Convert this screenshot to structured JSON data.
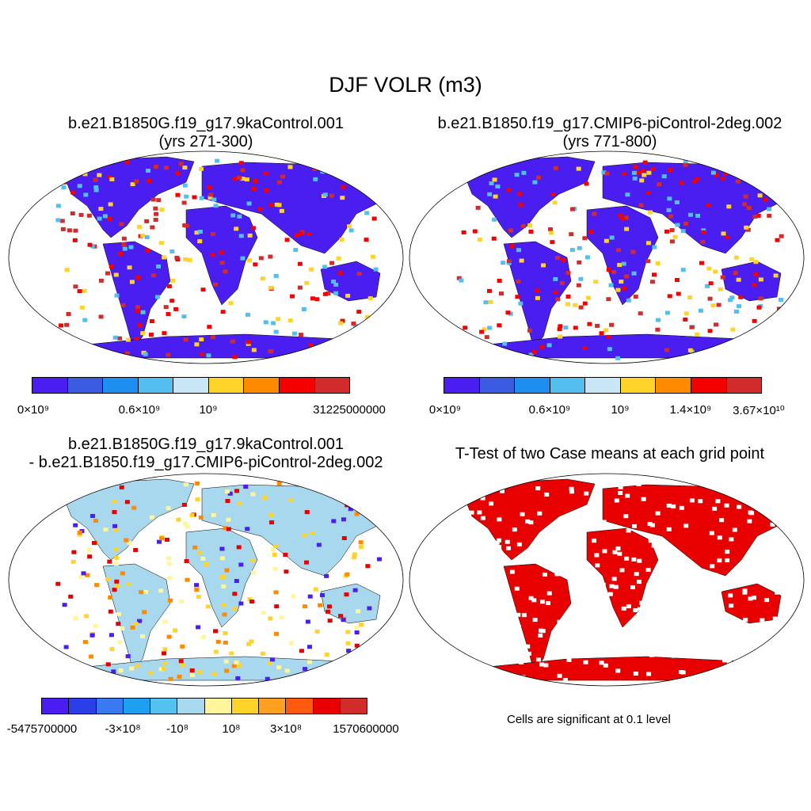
{
  "title": "DJF VOLR (m3)",
  "panels": [
    {
      "id": "case1",
      "title_line1": "b.e21.B1850G.f19_g17.9kaControl.001",
      "title_line2": "(yrs 271-300)",
      "colors": [
        "#4a1df0",
        "#3a5ae0",
        "#1e8ff0",
        "#52bfee",
        "#c8e6f6",
        "#ffd42a",
        "#ff8a00",
        "#f50000",
        "#d22b2b"
      ],
      "ticks": [
        "0×10⁹",
        "0.6×10⁹",
        "10⁹",
        "31225000000"
      ]
    },
    {
      "id": "case2",
      "title_line1": "b.e21.B1850.f19_g17.CMIP6-piControl-2deg.002",
      "title_line2": "(yrs 771-800)",
      "colors": [
        "#4a1df0",
        "#3a5ae0",
        "#1e8ff0",
        "#52bfee",
        "#c8e6f6",
        "#ffd42a",
        "#ff8a00",
        "#f50000",
        "#d22b2b"
      ],
      "ticks": [
        "0×10⁹",
        "0.6×10⁹",
        "10⁹",
        "1.4×10⁹",
        "3.67×10¹⁰"
      ]
    },
    {
      "id": "diff",
      "title_line1": "b.e21.B1850G.f19_g17.9kaControl.001",
      "title_line2": "- b.e21.B1850.f19_g17.CMIP6-piControl-2deg.002",
      "colors": [
        "#4a1df0",
        "#2b3fe8",
        "#3a7af0",
        "#1e9ff0",
        "#55c1ee",
        "#a8d8ee",
        "#fff59a",
        "#ffd42a",
        "#ffa020",
        "#ff5a10",
        "#e80000",
        "#d22b2b"
      ],
      "ticks": [
        "-5475700000",
        "-3×10⁸",
        "-10⁸",
        "10⁸",
        "3×10⁸",
        "1570600000"
      ]
    },
    {
      "id": "ttest",
      "title_line1": "T-Test of two Case means at each grid point",
      "title_line2": "",
      "note": "Cells are significant at 0.1 level",
      "color": "#e80000"
    }
  ]
}
